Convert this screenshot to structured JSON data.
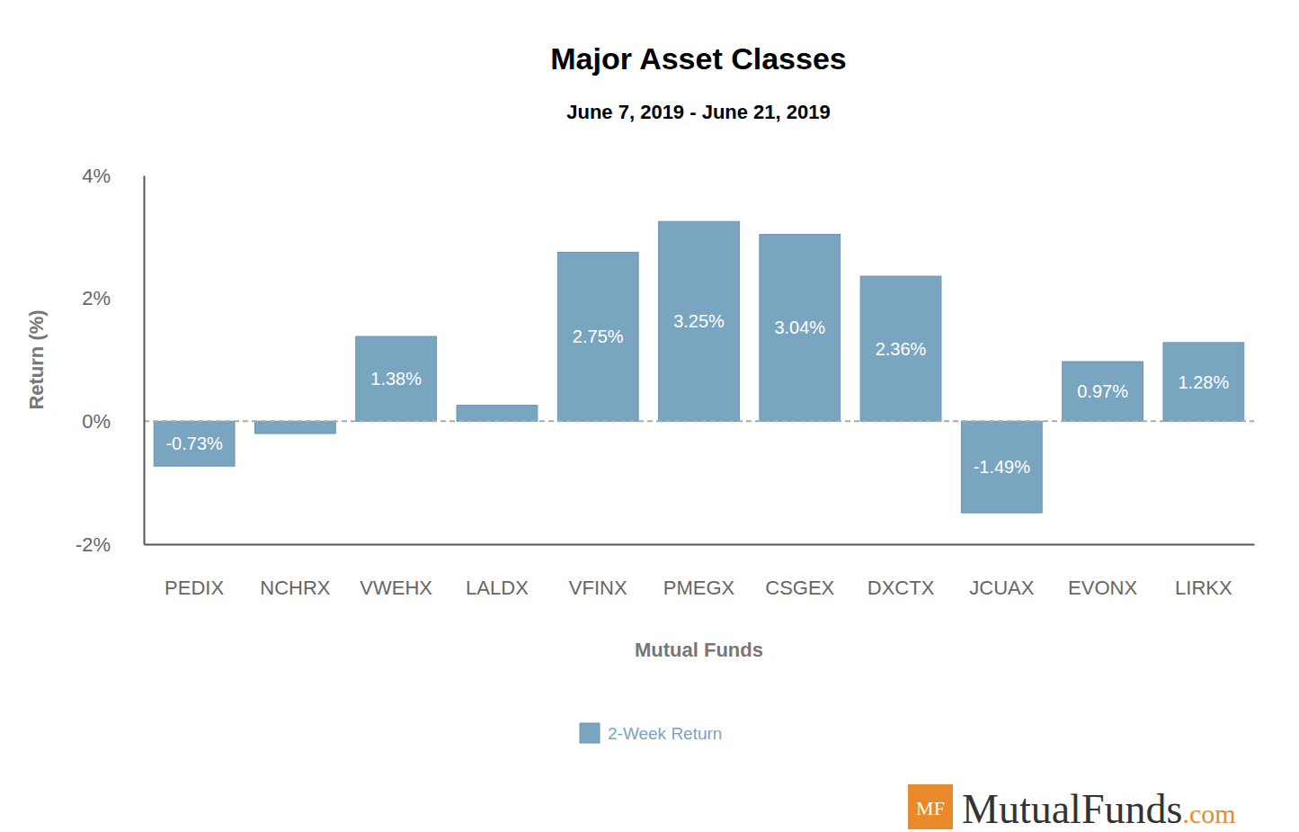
{
  "chart_data": {
    "type": "bar",
    "title": "Major Asset Classes",
    "subtitle": "June 7, 2019 - June 21, 2019",
    "x_label": "Mutual Funds",
    "y_label": "Return (%)",
    "categories": [
      "PEDIX",
      "NCHRX",
      "VWEHX",
      "LALDX",
      "VFINX",
      "PMEGX",
      "CSGEX",
      "DXCTX",
      "JCUAX",
      "EVONX",
      "LIRKX"
    ],
    "series": [
      {
        "name": "2-Week Return",
        "color": "#7aa5c1",
        "values": [
          -0.73,
          -0.2,
          1.38,
          0.26,
          2.75,
          3.25,
          3.04,
          2.36,
          -1.49,
          0.97,
          1.28
        ],
        "value_labels": [
          "-0.73%",
          null,
          "1.38%",
          null,
          "2.75%",
          "3.25%",
          "3.04%",
          "2.36%",
          "-1.49%",
          "0.97%",
          "1.28%"
        ]
      }
    ],
    "ylim": [
      -2,
      4
    ],
    "yticks": [
      {
        "value": -2,
        "label": "-2%"
      },
      {
        "value": 0,
        "label": "0%"
      },
      {
        "value": 2,
        "label": "2%"
      },
      {
        "value": 4,
        "label": "4%"
      }
    ],
    "grid": false,
    "legend": "bottom",
    "data_labels": true,
    "annotations": [
      "MF",
      "MutualFunds",
      ".com"
    ]
  }
}
